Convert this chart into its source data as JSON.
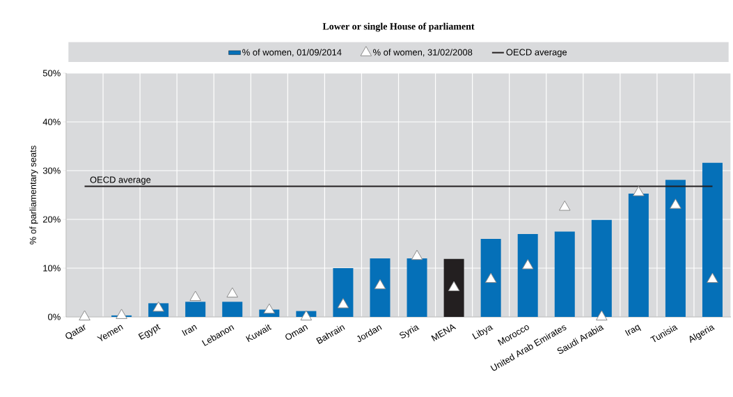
{
  "chart_data": {
    "type": "bar",
    "title": "Lower or single House of parliament",
    "ylabel": "% of parliamentary seats",
    "categories": [
      "Qatar",
      "Yemen",
      "Egypt",
      "Iran",
      "Lebanon",
      "Kuwait",
      "Oman",
      "Bahrain",
      "Jordan",
      "Syria",
      "MENA",
      "Libya",
      "Morocco",
      "United Arab Emirates",
      "Saudi Arabia",
      "Iraq",
      "Tunisia",
      "Algeria"
    ],
    "series": [
      {
        "name": "% of women, 01/09/2014",
        "type": "bar",
        "color": "#0570b8",
        "colors": [
          "#0570b8",
          "#0570b8",
          "#0570b8",
          "#0570b8",
          "#0570b8",
          "#0570b8",
          "#0570b8",
          "#0570b8",
          "#0570b8",
          "#0570b8",
          "#231f20",
          "#0570b8",
          "#0570b8",
          "#0570b8",
          "#0570b8",
          "#0570b8",
          "#0570b8",
          "#0570b8"
        ],
        "values": [
          0,
          0.3,
          2.8,
          3.1,
          3.1,
          1.5,
          1.2,
          10,
          12,
          12,
          11.9,
          16,
          17,
          17.5,
          19.9,
          25.3,
          28.1,
          31.6
        ]
      },
      {
        "name": "% of women, 31/02/2008",
        "type": "scatter",
        "marker": "triangle",
        "color": "#ffffff",
        "values": [
          0,
          0.3,
          1.8,
          4.0,
          4.7,
          1.4,
          0,
          2.5,
          6.4,
          12.4,
          6,
          7.7,
          10.5,
          22.5,
          0,
          25.5,
          22.9,
          7.7
        ]
      }
    ],
    "ref_lines": [
      {
        "axis": "y",
        "value": 26.8,
        "label": "OECD average",
        "color": "#231f20"
      }
    ],
    "ylim": [
      0,
      50
    ],
    "yticks": [
      {
        "value": 0,
        "label": "0%"
      },
      {
        "value": 10,
        "label": "10%"
      },
      {
        "value": 20,
        "label": "20%"
      },
      {
        "value": 30,
        "label": "30%"
      },
      {
        "value": 40,
        "label": "40%"
      },
      {
        "value": 50,
        "label": "50%"
      }
    ],
    "grid": true,
    "legend": "top"
  }
}
